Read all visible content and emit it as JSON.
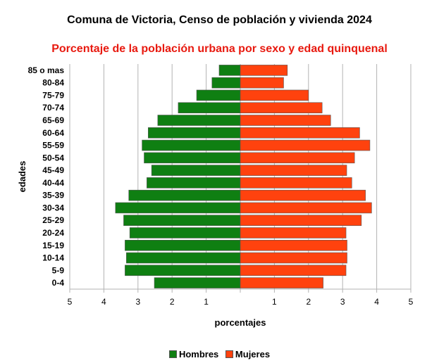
{
  "chart_data": {
    "type": "bar",
    "orientation": "horizontal",
    "title": "Comuna de Victoria, Censo de población y vivienda 2024",
    "subtitle": "Porcentaje de la población urbana por sexo y edad quinquenal",
    "xlabel": "porcentajes",
    "ylabel": "edades",
    "xlim": [
      -5,
      5
    ],
    "x_ticks": [
      "5",
      "4",
      "3",
      "2",
      "1",
      "",
      "1",
      "2",
      "3",
      "4",
      "5"
    ],
    "grid": true,
    "legend_position": "bottom",
    "categories": [
      "85 o mas",
      "80-84",
      "75-79",
      "70-74",
      "65-69",
      "60-64",
      "55-59",
      "50-54",
      "45-49",
      "40-44",
      "35-39",
      "30-34",
      "25-29",
      "20-24",
      "15-19",
      "10-14",
      "5-9",
      "0-4"
    ],
    "series": [
      {
        "name": "Hombres",
        "color": "#0f7f12",
        "values": [
          0.62,
          0.83,
          1.28,
          1.82,
          2.42,
          2.7,
          2.88,
          2.82,
          2.6,
          2.74,
          3.27,
          3.66,
          3.42,
          3.24,
          3.38,
          3.34,
          3.38,
          2.52
        ]
      },
      {
        "name": "Mujeres",
        "color": "#ff420e",
        "values": [
          1.38,
          1.27,
          2.0,
          2.4,
          2.65,
          3.5,
          3.8,
          3.35,
          3.12,
          3.27,
          3.67,
          3.85,
          3.55,
          3.1,
          3.13,
          3.13,
          3.1,
          2.43
        ]
      }
    ]
  }
}
